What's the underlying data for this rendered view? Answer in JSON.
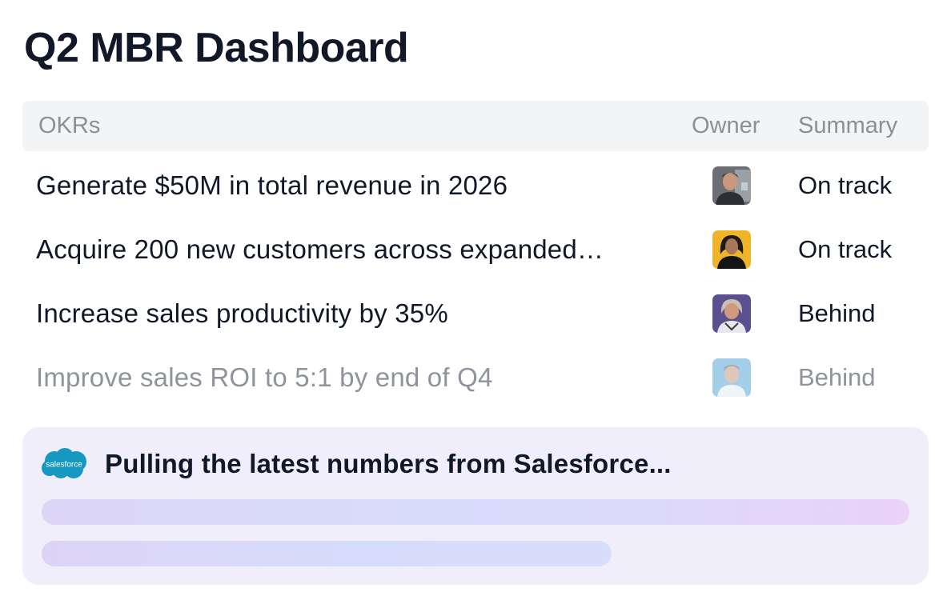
{
  "dashboard": {
    "title": "Q2 MBR Dashboard"
  },
  "table": {
    "headers": {
      "okrs": "OKRs",
      "owner": "Owner",
      "summary": "Summary"
    },
    "rows": [
      {
        "okr": "Generate $50M in total revenue in 2026",
        "owner_avatar": "avatar-man-dark-shirt",
        "summary": "On track"
      },
      {
        "okr": "Acquire 200 new customers across expanded…",
        "owner_avatar": "avatar-woman-yellow-bg",
        "summary": "On track"
      },
      {
        "okr": "Increase sales productivity by 35%",
        "owner_avatar": "avatar-woman-purple-bg",
        "summary": "Behind"
      },
      {
        "okr": "Improve sales ROI to 5:1 by end of Q4",
        "owner_avatar": "avatar-man-blue-bg",
        "summary": "Behind"
      }
    ]
  },
  "loading_panel": {
    "logo_text": "salesforce",
    "message": "Pulling the latest numbers from Salesforce...",
    "brand_color": "#1798c1"
  },
  "colors": {
    "title": "#111827",
    "header_bg": "#f3f4f6",
    "header_text": "#8b8f98",
    "panel_bg": "#f1eefc"
  }
}
